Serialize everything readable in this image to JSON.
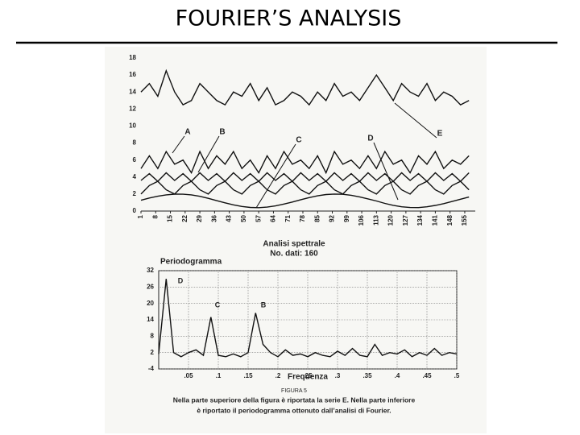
{
  "slide_title": "FOURIER’S ANALYSIS",
  "chart_data": [
    {
      "type": "line",
      "title": "Analisi spettrale",
      "subtitle": "No. dati: 160",
      "x": [
        1,
        5,
        9,
        13,
        17,
        21,
        25,
        29,
        33,
        37,
        41,
        45,
        49,
        53,
        57,
        61,
        65,
        69,
        73,
        77,
        81,
        85,
        89,
        93,
        97,
        101,
        105,
        109,
        113,
        117,
        121,
        125,
        129,
        133,
        137,
        141,
        145,
        149,
        153,
        157
      ],
      "series": [
        {
          "name": "A",
          "color": "#111",
          "values": [
            5,
            6.5,
            5,
            7,
            5.5,
            6,
            4.5,
            7,
            5,
            6.5,
            5.5,
            7,
            5,
            6,
            4.5,
            6.5,
            5,
            7,
            5.5,
            6,
            5,
            6.5,
            4.5,
            7,
            5.5,
            6,
            5,
            6.5,
            5,
            7,
            5.5,
            6,
            4.5,
            6.5,
            5.5,
            7,
            5,
            6,
            5.5,
            6.5
          ]
        },
        {
          "name": "B",
          "color": "#111",
          "values": [
            3.6,
            4.4,
            3.5,
            4.5,
            3.6,
            4.4,
            3.5,
            4.5,
            3.6,
            4.4,
            3.5,
            4.5,
            3.6,
            4.4,
            3.5,
            4.5,
            3.6,
            4.4,
            3.5,
            4.5,
            3.6,
            4.4,
            3.5,
            4.5,
            3.6,
            4.4,
            3.5,
            4.5,
            3.6,
            4.4,
            3.5,
            4.5,
            3.6,
            4.4,
            3.5,
            4.5,
            3.6,
            4.4,
            3.5,
            4.5
          ]
        },
        {
          "name": "C",
          "color": "#111",
          "values": [
            2,
            3,
            3.5,
            2.5,
            2,
            3,
            3.5,
            2.5,
            2,
            3,
            3.5,
            2.5,
            2,
            3,
            3.5,
            2.5,
            2,
            3,
            3.5,
            2.5,
            2,
            3,
            3.5,
            2.5,
            2,
            3,
            3.5,
            2.5,
            2,
            3,
            3.5,
            2.5,
            2,
            3,
            3.5,
            2.5,
            2,
            3,
            3.5,
            2.5
          ]
        },
        {
          "name": "D",
          "color": "#111",
          "values": [
            1.27,
            1.53,
            1.74,
            1.9,
            1.99,
            1.98,
            1.9,
            1.73,
            1.5,
            1.22,
            0.97,
            0.73,
            0.54,
            0.43,
            0.4,
            0.46,
            0.61,
            0.82,
            1.06,
            1.34,
            1.58,
            1.79,
            1.94,
            2,
            1.97,
            1.86,
            1.67,
            1.43,
            1.18,
            0.9,
            0.67,
            0.5,
            0.42,
            0.41,
            0.5,
            0.66,
            0.87,
            1.13,
            1.39,
            1.65
          ]
        },
        {
          "name": "E",
          "color": "#111",
          "values": [
            14,
            15,
            13.5,
            16.5,
            14,
            12.5,
            13,
            15,
            14,
            13,
            12.5,
            14,
            13.5,
            15,
            13,
            14.5,
            12.5,
            13,
            14,
            13.5,
            12.5,
            14,
            13,
            15,
            13.5,
            14,
            13,
            14.5,
            16,
            14.5,
            13,
            15,
            14,
            13.5,
            15,
            13,
            14,
            13.5,
            12.5,
            13
          ]
        }
      ],
      "xlim": [
        1,
        160
      ],
      "xticks": [
        1,
        8,
        15,
        22,
        29,
        36,
        43,
        50,
        57,
        64,
        71,
        78,
        85,
        92,
        99,
        106,
        113,
        120,
        127,
        134,
        141,
        148,
        155
      ],
      "ylim": [
        0,
        18
      ],
      "yticks": [
        0,
        2,
        4,
        6,
        8,
        10,
        12,
        14,
        16,
        18
      ],
      "grid": false
    },
    {
      "type": "line",
      "title": "Periodogramma",
      "x_label": "Frequenza",
      "x": [
        0,
        0.0125,
        0.025,
        0.0375,
        0.05,
        0.0625,
        0.075,
        0.0875,
        0.1,
        0.1125,
        0.125,
        0.1375,
        0.15,
        0.1625,
        0.175,
        0.1875,
        0.2,
        0.2125,
        0.225,
        0.2375,
        0.25,
        0.2625,
        0.275,
        0.2875,
        0.3,
        0.3125,
        0.325,
        0.3375,
        0.35,
        0.3625,
        0.375,
        0.3875,
        0.4,
        0.4125,
        0.425,
        0.4375,
        0.45,
        0.4625,
        0.475,
        0.4875,
        0.5
      ],
      "series": [
        {
          "name": "Periodogramma",
          "color": "#111",
          "values": [
            1.5,
            29,
            2,
            0.5,
            2,
            3,
            1,
            15,
            1,
            0.5,
            1.5,
            0.5,
            2,
            16.5,
            5,
            2,
            0.5,
            3,
            1,
            1.5,
            0.5,
            2,
            1,
            0.5,
            2.5,
            1,
            3.5,
            1,
            0.5,
            5,
            1,
            2,
            1.5,
            3,
            0.5,
            2,
            1,
            3.5,
            1,
            2,
            1.5
          ]
        }
      ],
      "annotations": [
        "D",
        "C",
        "B"
      ],
      "xlim": [
        0,
        0.5
      ],
      "xticks": [
        {
          "value": 0.05,
          "label": ".05"
        },
        {
          "value": 0.1,
          "label": ".1"
        },
        {
          "value": 0.15,
          "label": ".15"
        },
        {
          "value": 0.2,
          "label": ".2"
        },
        {
          "value": 0.25,
          "label": ".25"
        },
        {
          "value": 0.3,
          "label": ".3"
        },
        {
          "value": 0.35,
          "label": ".35"
        },
        {
          "value": 0.4,
          "label": ".4"
        },
        {
          "value": 0.45,
          "label": ".45"
        },
        {
          "value": 0.5,
          "label": ".5"
        }
      ],
      "ylim": [
        -4,
        32
      ],
      "yticks": [
        -4,
        2,
        8,
        14,
        20,
        26,
        32
      ],
      "grid": true
    }
  ],
  "caption": {
    "label": "FIGURA 5",
    "lines": [
      "Nella parte superiore della figura è riportata la serie E. Nella parte inferiore",
      "è riportato il periodogramma ottenuto dall’analisi di Fourier."
    ]
  }
}
